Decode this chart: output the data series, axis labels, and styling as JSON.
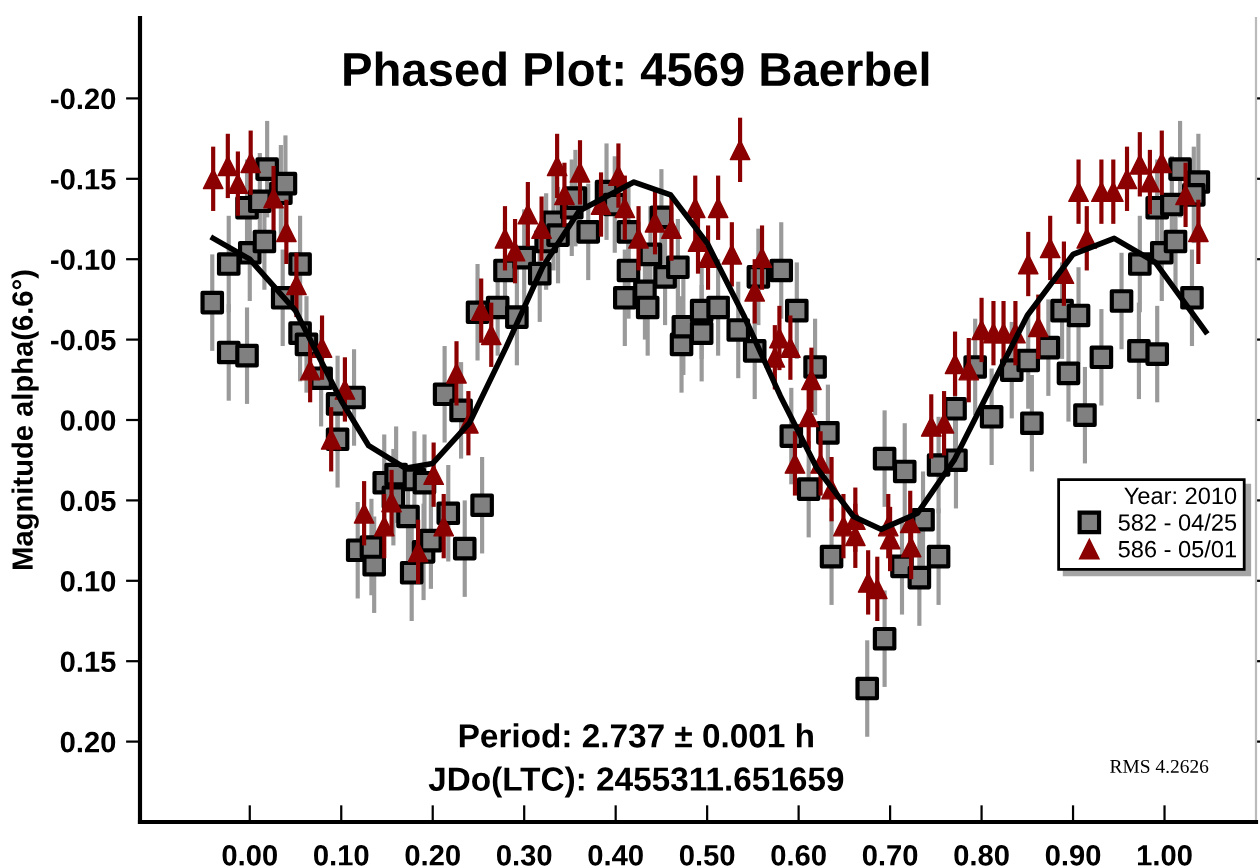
{
  "chart_data": {
    "type": "scatter",
    "title": "Phased Plot: 4569 Baerbel",
    "ylabel": "Magnitude alpha(6.6°)",
    "legend_title": "Year: 2010",
    "legend": "right",
    "grid": false,
    "xlim": [
      -0.12,
      1.1
    ],
    "ylim": [
      0.25,
      -0.25
    ],
    "xticks": [
      {
        "value": 0,
        "label": "0.00"
      },
      {
        "value": 0.1,
        "label": "0.10"
      },
      {
        "value": 0.2,
        "label": "0.20"
      },
      {
        "value": 0.3,
        "label": "0.30"
      },
      {
        "value": 0.4,
        "label": "0.40"
      },
      {
        "value": 0.5,
        "label": "0.50"
      },
      {
        "value": 0.6,
        "label": "0.60"
      },
      {
        "value": 0.7,
        "label": "0.70"
      },
      {
        "value": 0.8,
        "label": "0.80"
      },
      {
        "value": 0.9,
        "label": "0.90"
      },
      {
        "value": 1,
        "label": "1.00"
      }
    ],
    "yticks": [
      {
        "value": -0.2,
        "label": "-0.20"
      },
      {
        "value": -0.15,
        "label": "-0.15"
      },
      {
        "value": -0.1,
        "label": "-0.10"
      },
      {
        "value": -0.05,
        "label": "-0.05"
      },
      {
        "value": 0,
        "label": "0.00"
      },
      {
        "value": 0.05,
        "label": "0.05"
      },
      {
        "value": 0.1,
        "label": "0.10"
      },
      {
        "value": 0.15,
        "label": "0.15"
      },
      {
        "value": 0.2,
        "label": "0.20"
      }
    ],
    "annotations": [
      "Period: 2.737 ± 0.001 h",
      "JDo(LTC): 2455311.651659",
      "RMS 4.2626"
    ],
    "series": [
      {
        "type": "line",
        "color": "#000000",
        "line_style": "solid",
        "marker": "none",
        "x": [
          -0.04,
          0.0,
          0.05,
          0.1,
          0.13,
          0.17,
          0.2,
          0.24,
          0.28,
          0.32,
          0.36,
          0.42,
          0.46,
          0.5,
          0.54,
          0.58,
          0.62,
          0.66,
          0.69,
          0.73,
          0.77,
          0.81,
          0.85,
          0.9,
          0.945,
          0.99,
          1.045
        ],
        "values": [
          -0.113,
          -0.1,
          -0.068,
          -0.012,
          0.016,
          0.03,
          0.027,
          0.002,
          -0.045,
          -0.095,
          -0.13,
          -0.148,
          -0.14,
          -0.11,
          -0.065,
          -0.015,
          0.03,
          0.06,
          0.068,
          0.058,
          0.025,
          -0.02,
          -0.065,
          -0.103,
          -0.113,
          -0.098,
          -0.055
        ]
      },
      {
        "type": "scatter",
        "name": "582 - 04/25",
        "color": "#808080",
        "marker": "square",
        "x": [
          -0.041,
          -0.023,
          -0.023,
          -0.003,
          0.0,
          -0.003,
          0.016,
          0.019,
          0.011,
          0.034,
          0.039,
          0.036,
          0.055,
          0.055,
          0.062,
          0.078,
          0.096,
          0.114,
          0.096,
          0.213,
          0.231,
          0.249,
          0.271,
          0.279,
          0.292,
          0.3,
          0.317,
          0.324,
          0.332,
          0.337,
          0.352,
          0.356,
          0.37,
          0.39,
          0.399,
          0.41,
          0.414,
          0.118,
          0.136,
          0.133,
          0.147,
          0.16,
          0.157,
          0.173,
          0.177,
          0.18,
          0.191,
          0.19,
          0.198,
          0.217,
          0.235,
          0.254,
          0.414,
          0.432,
          0.435,
          0.438,
          0.45,
          0.454,
          0.468,
          0.472,
          0.474,
          0.494,
          0.494,
          0.512,
          0.534,
          0.552,
          0.556,
          0.581,
          0.598,
          0.618,
          0.592,
          0.632,
          0.694,
          0.716,
          0.753,
          0.772,
          0.771,
          0.793,
          0.811,
          0.833,
          0.851,
          0.855,
          0.873,
          0.888,
          0.895,
          0.906,
          0.913,
          0.931,
          0.953,
          0.973,
          0.972,
          0.992,
          0.997,
          0.992,
          1.012,
          1.008,
          1.017,
          1.03,
          1.037,
          1.032,
          0.611,
          0.636,
          0.675,
          0.694,
          0.713,
          0.732,
          0.736,
          0.753
        ],
        "values": [
          -0.073,
          -0.097,
          -0.042,
          -0.04,
          -0.104,
          -0.132,
          -0.111,
          -0.156,
          -0.136,
          -0.141,
          -0.147,
          -0.076,
          -0.097,
          -0.054,
          -0.047,
          -0.026,
          -0.01,
          -0.014,
          0.012,
          -0.016,
          -0.006,
          -0.067,
          -0.07,
          -0.093,
          -0.064,
          -0.101,
          -0.091,
          -0.111,
          -0.123,
          -0.115,
          -0.132,
          -0.138,
          -0.117,
          -0.142,
          -0.134,
          -0.076,
          -0.093,
          0.081,
          0.09,
          0.079,
          0.039,
          0.034,
          0.048,
          0.06,
          0.095,
          0.037,
          0.039,
          0.082,
          0.075,
          0.058,
          0.08,
          0.053,
          -0.117,
          -0.08,
          -0.07,
          -0.103,
          -0.126,
          -0.089,
          -0.095,
          -0.047,
          -0.058,
          -0.054,
          -0.068,
          -0.07,
          -0.056,
          -0.043,
          -0.089,
          -0.093,
          -0.068,
          -0.033,
          0.01,
          0.008,
          0.024,
          0.032,
          0.028,
          0.025,
          -0.007,
          -0.033,
          -0.002,
          -0.031,
          -0.037,
          0.002,
          -0.045,
          -0.068,
          -0.029,
          -0.065,
          -0.003,
          -0.039,
          -0.074,
          -0.097,
          -0.043,
          -0.041,
          -0.104,
          -0.132,
          -0.111,
          -0.134,
          -0.156,
          -0.076,
          -0.148,
          -0.14,
          0.043,
          0.085,
          0.167,
          0.136,
          0.091,
          0.098,
          0.062,
          0.085
        ],
        "errors": [
          0.03,
          0.03,
          0.03,
          0.03,
          0.03,
          0.03,
          0.03,
          0.03,
          0.03,
          0.03,
          0.03,
          0.03,
          0.03,
          0.03,
          0.03,
          0.03,
          0.03,
          0.03,
          0.03,
          0.03,
          0.03,
          0.03,
          0.03,
          0.03,
          0.03,
          0.03,
          0.03,
          0.03,
          0.03,
          0.03,
          0.03,
          0.03,
          0.03,
          0.03,
          0.03,
          0.03,
          0.03,
          0.03,
          0.03,
          0.03,
          0.03,
          0.03,
          0.03,
          0.03,
          0.03,
          0.03,
          0.03,
          0.03,
          0.03,
          0.03,
          0.03,
          0.03,
          0.03,
          0.03,
          0.03,
          0.03,
          0.03,
          0.03,
          0.03,
          0.03,
          0.03,
          0.03,
          0.03,
          0.03,
          0.03,
          0.03,
          0.03,
          0.03,
          0.03,
          0.03,
          0.03,
          0.03,
          0.03,
          0.03,
          0.03,
          0.03,
          0.03,
          0.03,
          0.03,
          0.03,
          0.03,
          0.03,
          0.03,
          0.03,
          0.03,
          0.03,
          0.03,
          0.03,
          0.03,
          0.03,
          0.03,
          0.03,
          0.03,
          0.03,
          0.03,
          0.03,
          0.03,
          0.03,
          0.03,
          0.03,
          0.03,
          0.03,
          0.03,
          0.03,
          0.03,
          0.03,
          0.03,
          0.03
        ]
      },
      {
        "type": "scatter",
        "name": "586 - 05/01",
        "color": "#8b0000",
        "marker": "triangle",
        "x": [
          -0.04,
          -0.024,
          -0.013,
          0.001,
          0.026,
          0.04,
          0.051,
          0.079,
          0.066,
          0.104,
          0.089,
          0.226,
          0.239,
          0.253,
          0.264,
          0.279,
          0.29,
          0.304,
          0.319,
          0.336,
          0.344,
          0.361,
          0.384,
          0.403,
          0.125,
          0.147,
          0.155,
          0.201,
          0.184,
          0.212,
          0.41,
          0.425,
          0.443,
          0.461,
          0.487,
          0.49,
          0.501,
          0.512,
          0.527,
          0.536,
          0.552,
          0.56,
          0.574,
          0.579,
          0.591,
          0.614,
          0.611,
          0.745,
          0.759,
          0.771,
          0.786,
          0.8,
          0.813,
          0.824,
          0.837,
          0.851,
          0.862,
          0.875,
          0.89,
          0.906,
          0.915,
          0.931,
          0.944,
          0.959,
          0.973,
          0.984,
          0.997,
          1.023,
          1.037,
          0.596,
          0.624,
          0.636,
          0.649,
          0.662,
          0.662,
          0.676,
          0.686,
          0.698,
          0.7,
          0.722,
          0.723
        ],
        "values": [
          -0.15,
          -0.158,
          -0.147,
          -0.16,
          -0.138,
          -0.117,
          -0.084,
          -0.045,
          -0.031,
          -0.019,
          0.012,
          -0.029,
          0.002,
          -0.068,
          -0.053,
          -0.113,
          -0.105,
          -0.128,
          -0.119,
          -0.158,
          -0.14,
          -0.154,
          -0.134,
          -0.152,
          0.058,
          0.066,
          0.051,
          0.034,
          0.082,
          0.066,
          -0.132,
          -0.113,
          -0.123,
          -0.119,
          -0.132,
          -0.111,
          -0.101,
          -0.132,
          -0.103,
          -0.168,
          -0.08,
          -0.101,
          -0.039,
          -0.051,
          -0.045,
          -0.025,
          -0.002,
          0.004,
          0.002,
          -0.035,
          -0.031,
          -0.056,
          -0.054,
          -0.054,
          -0.054,
          -0.097,
          -0.058,
          -0.107,
          -0.091,
          -0.142,
          -0.113,
          -0.142,
          -0.142,
          -0.15,
          -0.159,
          -0.148,
          -0.16,
          -0.14,
          -0.117,
          0.027,
          0.027,
          0.043,
          0.066,
          0.072,
          0.062,
          0.101,
          0.105,
          0.066,
          0.074,
          0.064,
          0.079
        ],
        "errors": [
          0.02,
          0.02,
          0.02,
          0.02,
          0.02,
          0.02,
          0.02,
          0.02,
          0.02,
          0.02,
          0.02,
          0.02,
          0.02,
          0.02,
          0.02,
          0.02,
          0.02,
          0.02,
          0.02,
          0.02,
          0.02,
          0.02,
          0.02,
          0.02,
          0.02,
          0.02,
          0.02,
          0.02,
          0.02,
          0.02,
          0.02,
          0.02,
          0.02,
          0.02,
          0.02,
          0.02,
          0.02,
          0.02,
          0.02,
          0.02,
          0.02,
          0.02,
          0.02,
          0.02,
          0.02,
          0.02,
          0.02,
          0.02,
          0.02,
          0.02,
          0.02,
          0.02,
          0.02,
          0.02,
          0.02,
          0.02,
          0.02,
          0.02,
          0.02,
          0.02,
          0.02,
          0.02,
          0.02,
          0.02,
          0.02,
          0.02,
          0.02,
          0.02,
          0.02,
          0.02,
          0.02,
          0.02,
          0.02,
          0.02,
          0.02,
          0.02,
          0.02,
          0.02,
          0.02,
          0.02,
          0.02
        ]
      }
    ]
  }
}
